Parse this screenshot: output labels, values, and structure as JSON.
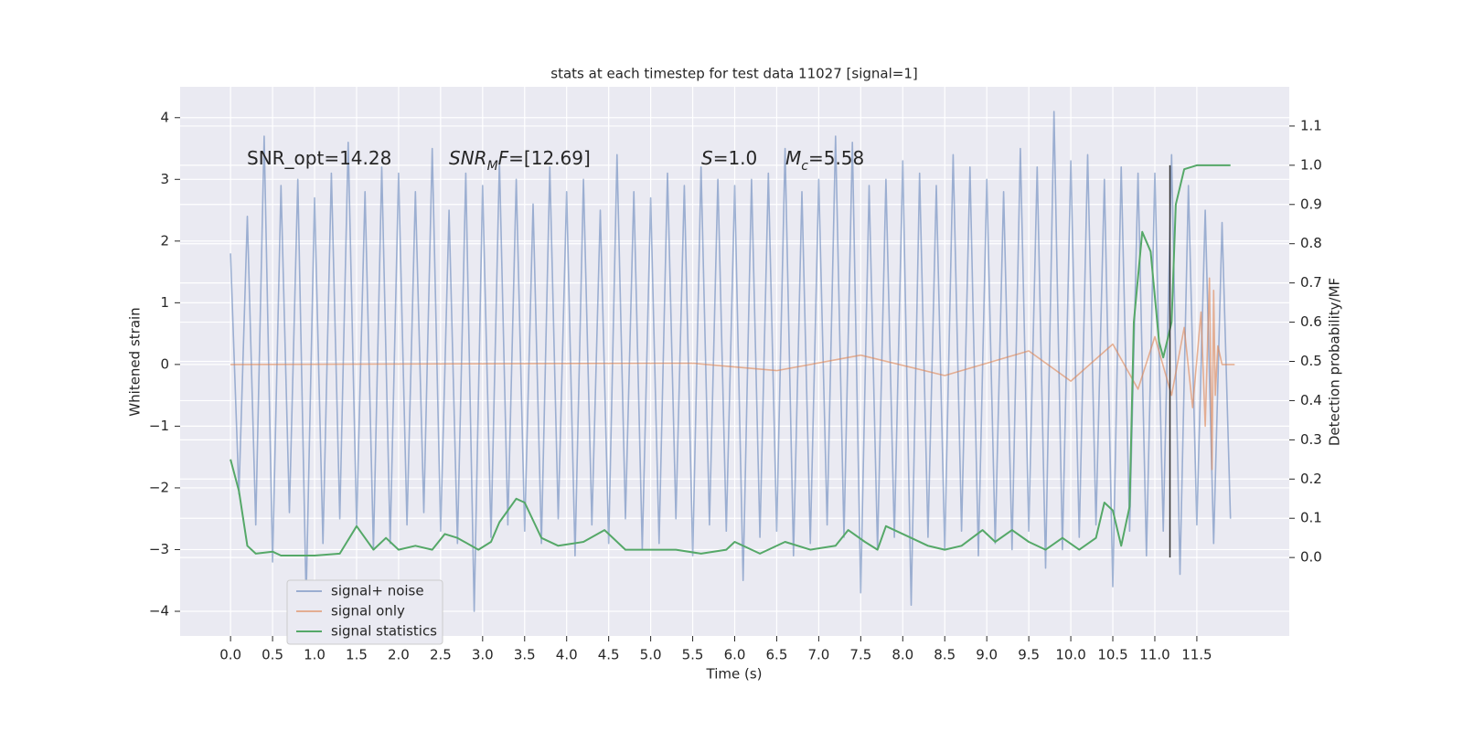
{
  "chart_data": {
    "type": "line",
    "title": "stats at each timestep for test data 11027 [signal=1]",
    "xlabel": "Time (s)",
    "ylabel": "Whitened strain",
    "y2label": "Detection probability/MF",
    "xlim": [
      -0.6,
      12.6
    ],
    "ylim": [
      -4.4,
      4.5
    ],
    "y2lim": [
      -0.2,
      1.2
    ],
    "xticks": [
      {
        "value": 0,
        "label": "0.0"
      },
      0.5,
      {
        "value": 1,
        "label": "1.0"
      },
      1.5,
      {
        "value": 2,
        "label": "2.0"
      },
      2.5,
      {
        "value": 3,
        "label": "3.0"
      },
      3.5,
      {
        "value": 4,
        "label": "4.0"
      },
      4.5,
      {
        "value": 5,
        "label": "5.0"
      },
      5.5,
      {
        "value": 6,
        "label": "6.0"
      },
      6.5,
      {
        "value": 7,
        "label": "7.0"
      },
      7.5,
      {
        "value": 8,
        "label": "8.0"
      },
      8.5,
      {
        "value": 9,
        "label": "9.0"
      },
      9.5,
      {
        "value": 10,
        "label": "10.0"
      },
      10.5,
      {
        "value": 11,
        "label": "11.0"
      },
      11.5
    ],
    "yticks": [
      {
        "value": -4,
        "label": "−4"
      },
      {
        "value": -3,
        "label": "−3"
      },
      {
        "value": -2,
        "label": "−2"
      },
      {
        "value": -1,
        "label": "−1"
      },
      0,
      1,
      2,
      3,
      4
    ],
    "y2ticks": [
      {
        "value": 0,
        "label": "0.0"
      },
      0.1,
      0.2,
      0.3,
      0.4,
      0.5,
      0.6,
      0.7,
      0.8,
      0.9,
      {
        "value": 1,
        "label": "1.0"
      },
      1.1
    ],
    "grid": true,
    "legend": "lower left",
    "series": [
      {
        "name": "signal+ noise",
        "color": "#4c72b0",
        "opacity": 0.5,
        "x": [
          0,
          0.1,
          0.2,
          0.3,
          0.4,
          0.5,
          0.6,
          0.7,
          0.8,
          0.9,
          1,
          1.1,
          1.2,
          1.3,
          1.4,
          1.5,
          1.6,
          1.7,
          1.8,
          1.9,
          2,
          2.1,
          2.2,
          2.3,
          2.4,
          2.5,
          2.6,
          2.7,
          2.8,
          2.9,
          3,
          3.1,
          3.2,
          3.3,
          3.4,
          3.5,
          3.6,
          3.7,
          3.8,
          3.9,
          4,
          4.1,
          4.2,
          4.3,
          4.4,
          4.5,
          4.6,
          4.7,
          4.8,
          4.9,
          5,
          5.1,
          5.2,
          5.3,
          5.4,
          5.5,
          5.6,
          5.7,
          5.8,
          5.9,
          6,
          6.1,
          6.2,
          6.3,
          6.4,
          6.5,
          6.6,
          6.7,
          6.8,
          6.9,
          7,
          7.1,
          7.2,
          7.3,
          7.4,
          7.5,
          7.6,
          7.7,
          7.8,
          7.9,
          8,
          8.1,
          8.2,
          8.3,
          8.4,
          8.5,
          8.6,
          8.7,
          8.8,
          8.9,
          9,
          9.1,
          9.2,
          9.3,
          9.4,
          9.5,
          9.6,
          9.7,
          9.8,
          9.9,
          10,
          10.1,
          10.2,
          10.3,
          10.4,
          10.5,
          10.6,
          10.7,
          10.8,
          10.9,
          11,
          11.1,
          11.2,
          11.3,
          11.4,
          11.5,
          11.6,
          11.7,
          11.8,
          11.9
        ],
        "values": [
          1.8,
          -2.1,
          2.4,
          -2.6,
          3.7,
          -3.2,
          2.9,
          -2.4,
          3.0,
          -3.8,
          2.7,
          -2.9,
          3.1,
          -2.5,
          3.6,
          -2.6,
          2.8,
          -3.0,
          3.2,
          -2.9,
          3.1,
          -2.6,
          2.8,
          -2.4,
          3.5,
          -2.7,
          2.5,
          -2.9,
          3.1,
          -4.0,
          2.9,
          -2.8,
          3.3,
          -2.6,
          3.0,
          -2.7,
          2.6,
          -2.9,
          3.2,
          -2.5,
          2.8,
          -3.1,
          3.0,
          -2.6,
          2.5,
          -2.9,
          3.4,
          -2.5,
          2.8,
          -3.0,
          2.7,
          -2.9,
          3.1,
          -2.5,
          2.9,
          -3.1,
          3.2,
          -2.6,
          3.0,
          -2.7,
          2.9,
          -3.5,
          3.0,
          -2.8,
          3.1,
          -2.7,
          3.5,
          -3.1,
          2.8,
          -2.9,
          3.0,
          -2.6,
          3.7,
          -2.8,
          3.6,
          -3.7,
          2.9,
          -3.0,
          3.0,
          -2.8,
          3.3,
          -3.9,
          3.1,
          -2.8,
          2.9,
          -3.0,
          3.4,
          -2.7,
          3.2,
          -3.1,
          3.0,
          -2.9,
          2.8,
          -3.0,
          3.5,
          -2.7,
          3.2,
          -3.3,
          4.1,
          -3.0,
          3.3,
          -2.8,
          3.4,
          -2.6,
          3.0,
          -3.6,
          3.2,
          -2.7,
          3.1,
          -3.1,
          3.1,
          -2.7,
          3.4,
          -3.4,
          2.9,
          -2.6,
          2.5,
          -2.9,
          2.3,
          -2.5
        ]
      },
      {
        "name": "signal only",
        "color": "#dd8452",
        "opacity": 0.6,
        "x": [
          0,
          5.5,
          6.5,
          7.5,
          8.5,
          9.5,
          10.0,
          10.5,
          10.8,
          11.0,
          11.2,
          11.35,
          11.45,
          11.55,
          11.6,
          11.65,
          11.68,
          11.7,
          11.72,
          11.75,
          11.8,
          11.95
        ],
        "values": [
          0,
          0.02,
          -0.1,
          0.15,
          -0.18,
          0.22,
          -0.27,
          0.33,
          -0.4,
          0.45,
          -0.5,
          0.6,
          -0.7,
          0.85,
          -1.0,
          1.4,
          -1.7,
          1.2,
          -0.5,
          0.3,
          0,
          0
        ]
      },
      {
        "name": "signal statistics",
        "color": "#55a868",
        "axis": "y2",
        "x": [
          0,
          0.1,
          0.2,
          0.3,
          0.5,
          0.6,
          1.0,
          1.3,
          1.5,
          1.7,
          1.85,
          2.0,
          2.2,
          2.4,
          2.55,
          2.7,
          2.95,
          3.1,
          3.2,
          3.4,
          3.5,
          3.7,
          3.9,
          4.2,
          4.45,
          4.5,
          4.7,
          5.0,
          5.3,
          5.6,
          5.9,
          6.0,
          6.3,
          6.6,
          6.9,
          7.2,
          7.35,
          7.55,
          7.7,
          7.8,
          8.1,
          8.3,
          8.5,
          8.7,
          8.95,
          9.1,
          9.3,
          9.5,
          9.7,
          9.9,
          10.1,
          10.3,
          10.4,
          10.5,
          10.6,
          10.7,
          10.75,
          10.85,
          10.95,
          11.05,
          11.1,
          11.2,
          11.25,
          11.35,
          11.5,
          11.9
        ],
        "values": [
          0.25,
          0.17,
          0.03,
          0.01,
          0.015,
          0.005,
          0.005,
          0.01,
          0.08,
          0.02,
          0.05,
          0.02,
          0.03,
          0.02,
          0.06,
          0.05,
          0.02,
          0.04,
          0.09,
          0.15,
          0.14,
          0.05,
          0.03,
          0.04,
          0.07,
          0.06,
          0.02,
          0.02,
          0.02,
          0.01,
          0.02,
          0.04,
          0.01,
          0.04,
          0.02,
          0.03,
          0.07,
          0.04,
          0.02,
          0.08,
          0.05,
          0.03,
          0.02,
          0.03,
          0.07,
          0.04,
          0.07,
          0.04,
          0.02,
          0.05,
          0.02,
          0.05,
          0.14,
          0.12,
          0.03,
          0.13,
          0.6,
          0.83,
          0.78,
          0.55,
          0.51,
          0.6,
          0.9,
          0.99,
          1.0,
          1.0
        ]
      }
    ],
    "vline": {
      "x": 11.18,
      "y2": [
        0,
        1.0
      ],
      "color": "#333333"
    },
    "annotations": [
      {
        "parts": [
          {
            "t": "SNR_opt=14.28"
          }
        ]
      },
      {
        "parts": [
          {
            "t": "SNR",
            "italic": true
          },
          {
            "t": "M",
            "italic": true,
            "sub": true
          },
          {
            "t": "F",
            "italic": true
          },
          {
            "t": "=[12.69]"
          }
        ]
      },
      {
        "parts": [
          {
            "t": "S",
            "italic": true
          },
          {
            "t": "=1.0"
          }
        ]
      },
      {
        "parts": [
          {
            "t": "M",
            "italic": true
          },
          {
            "t": "c",
            "italic": true,
            "sub": true
          },
          {
            "t": "=5.58"
          }
        ]
      }
    ]
  }
}
